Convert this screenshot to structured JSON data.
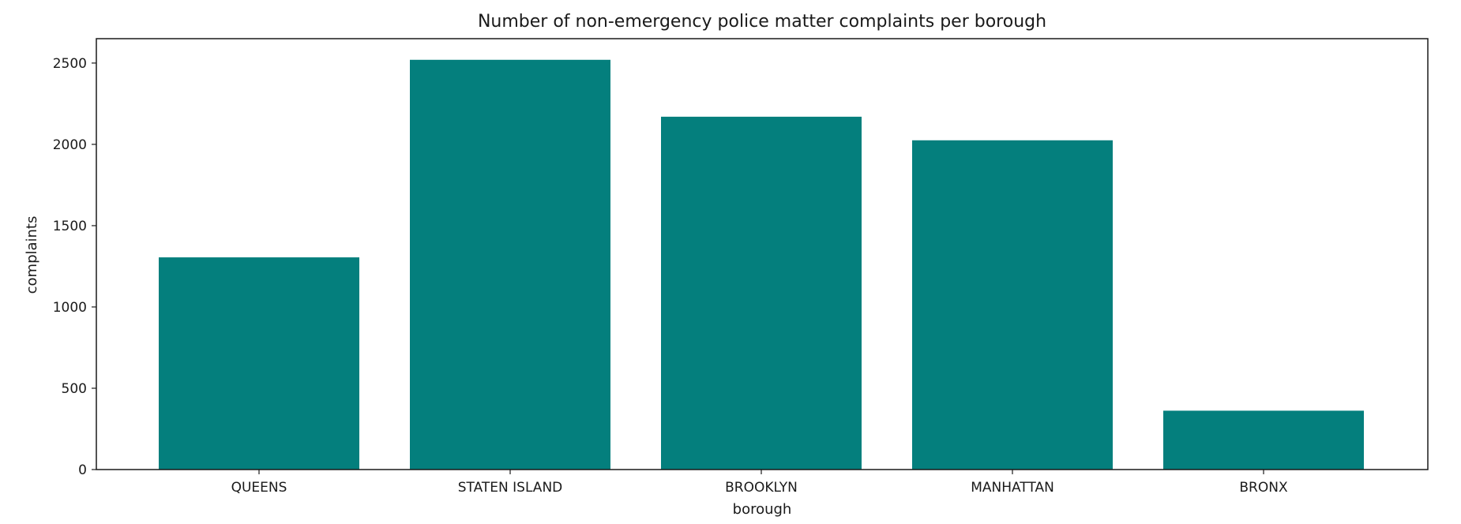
{
  "chart_data": {
    "type": "bar",
    "title": "Number of non-emergency police matter complaints per borough",
    "xlabel": "borough",
    "ylabel": "complaints",
    "categories": [
      "QUEENS",
      "STATEN ISLAND",
      "BROOKLYN",
      "MANHATTAN",
      "BRONX"
    ],
    "values": [
      1305,
      2520,
      2170,
      2025,
      362
    ],
    "ylim": [
      0,
      2650
    ],
    "yticks": [
      0,
      500,
      1000,
      1500,
      2000,
      2500
    ],
    "grid": false,
    "legend": "none",
    "bar_color": "#047f7d"
  }
}
